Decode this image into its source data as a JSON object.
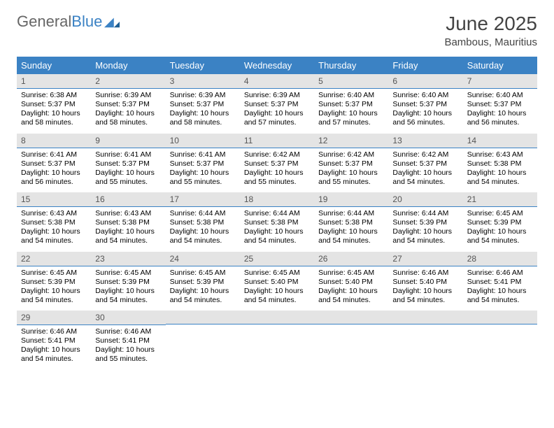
{
  "logo": {
    "word1": "General",
    "word2": "Blue"
  },
  "title": "June 2025",
  "location": "Bambous, Mauritius",
  "colors": {
    "header_bg": "#3b82c4",
    "header_text": "#ffffff",
    "daynum_bg": "#e4e4e4",
    "daynum_text": "#555555",
    "rule": "#3b82c4",
    "body_text": "#000000",
    "page_bg": "#ffffff",
    "logo_gray": "#666666",
    "logo_blue": "#3b82c4"
  },
  "typography": {
    "title_fontsize": 28,
    "location_fontsize": 15,
    "header_fontsize": 13,
    "daynum_fontsize": 12,
    "body_fontsize": 10.5
  },
  "dayNames": [
    "Sunday",
    "Monday",
    "Tuesday",
    "Wednesday",
    "Thursday",
    "Friday",
    "Saturday"
  ],
  "weeks": [
    [
      {
        "n": "1",
        "sr": "Sunrise: 6:38 AM",
        "ss": "Sunset: 5:37 PM",
        "d1": "Daylight: 10 hours",
        "d2": "and 58 minutes."
      },
      {
        "n": "2",
        "sr": "Sunrise: 6:39 AM",
        "ss": "Sunset: 5:37 PM",
        "d1": "Daylight: 10 hours",
        "d2": "and 58 minutes."
      },
      {
        "n": "3",
        "sr": "Sunrise: 6:39 AM",
        "ss": "Sunset: 5:37 PM",
        "d1": "Daylight: 10 hours",
        "d2": "and 58 minutes."
      },
      {
        "n": "4",
        "sr": "Sunrise: 6:39 AM",
        "ss": "Sunset: 5:37 PM",
        "d1": "Daylight: 10 hours",
        "d2": "and 57 minutes."
      },
      {
        "n": "5",
        "sr": "Sunrise: 6:40 AM",
        "ss": "Sunset: 5:37 PM",
        "d1": "Daylight: 10 hours",
        "d2": "and 57 minutes."
      },
      {
        "n": "6",
        "sr": "Sunrise: 6:40 AM",
        "ss": "Sunset: 5:37 PM",
        "d1": "Daylight: 10 hours",
        "d2": "and 56 minutes."
      },
      {
        "n": "7",
        "sr": "Sunrise: 6:40 AM",
        "ss": "Sunset: 5:37 PM",
        "d1": "Daylight: 10 hours",
        "d2": "and 56 minutes."
      }
    ],
    [
      {
        "n": "8",
        "sr": "Sunrise: 6:41 AM",
        "ss": "Sunset: 5:37 PM",
        "d1": "Daylight: 10 hours",
        "d2": "and 56 minutes."
      },
      {
        "n": "9",
        "sr": "Sunrise: 6:41 AM",
        "ss": "Sunset: 5:37 PM",
        "d1": "Daylight: 10 hours",
        "d2": "and 55 minutes."
      },
      {
        "n": "10",
        "sr": "Sunrise: 6:41 AM",
        "ss": "Sunset: 5:37 PM",
        "d1": "Daylight: 10 hours",
        "d2": "and 55 minutes."
      },
      {
        "n": "11",
        "sr": "Sunrise: 6:42 AM",
        "ss": "Sunset: 5:37 PM",
        "d1": "Daylight: 10 hours",
        "d2": "and 55 minutes."
      },
      {
        "n": "12",
        "sr": "Sunrise: 6:42 AM",
        "ss": "Sunset: 5:37 PM",
        "d1": "Daylight: 10 hours",
        "d2": "and 55 minutes."
      },
      {
        "n": "13",
        "sr": "Sunrise: 6:42 AM",
        "ss": "Sunset: 5:37 PM",
        "d1": "Daylight: 10 hours",
        "d2": "and 54 minutes."
      },
      {
        "n": "14",
        "sr": "Sunrise: 6:43 AM",
        "ss": "Sunset: 5:38 PM",
        "d1": "Daylight: 10 hours",
        "d2": "and 54 minutes."
      }
    ],
    [
      {
        "n": "15",
        "sr": "Sunrise: 6:43 AM",
        "ss": "Sunset: 5:38 PM",
        "d1": "Daylight: 10 hours",
        "d2": "and 54 minutes."
      },
      {
        "n": "16",
        "sr": "Sunrise: 6:43 AM",
        "ss": "Sunset: 5:38 PM",
        "d1": "Daylight: 10 hours",
        "d2": "and 54 minutes."
      },
      {
        "n": "17",
        "sr": "Sunrise: 6:44 AM",
        "ss": "Sunset: 5:38 PM",
        "d1": "Daylight: 10 hours",
        "d2": "and 54 minutes."
      },
      {
        "n": "18",
        "sr": "Sunrise: 6:44 AM",
        "ss": "Sunset: 5:38 PM",
        "d1": "Daylight: 10 hours",
        "d2": "and 54 minutes."
      },
      {
        "n": "19",
        "sr": "Sunrise: 6:44 AM",
        "ss": "Sunset: 5:38 PM",
        "d1": "Daylight: 10 hours",
        "d2": "and 54 minutes."
      },
      {
        "n": "20",
        "sr": "Sunrise: 6:44 AM",
        "ss": "Sunset: 5:39 PM",
        "d1": "Daylight: 10 hours",
        "d2": "and 54 minutes."
      },
      {
        "n": "21",
        "sr": "Sunrise: 6:45 AM",
        "ss": "Sunset: 5:39 PM",
        "d1": "Daylight: 10 hours",
        "d2": "and 54 minutes."
      }
    ],
    [
      {
        "n": "22",
        "sr": "Sunrise: 6:45 AM",
        "ss": "Sunset: 5:39 PM",
        "d1": "Daylight: 10 hours",
        "d2": "and 54 minutes."
      },
      {
        "n": "23",
        "sr": "Sunrise: 6:45 AM",
        "ss": "Sunset: 5:39 PM",
        "d1": "Daylight: 10 hours",
        "d2": "and 54 minutes."
      },
      {
        "n": "24",
        "sr": "Sunrise: 6:45 AM",
        "ss": "Sunset: 5:39 PM",
        "d1": "Daylight: 10 hours",
        "d2": "and 54 minutes."
      },
      {
        "n": "25",
        "sr": "Sunrise: 6:45 AM",
        "ss": "Sunset: 5:40 PM",
        "d1": "Daylight: 10 hours",
        "d2": "and 54 minutes."
      },
      {
        "n": "26",
        "sr": "Sunrise: 6:45 AM",
        "ss": "Sunset: 5:40 PM",
        "d1": "Daylight: 10 hours",
        "d2": "and 54 minutes."
      },
      {
        "n": "27",
        "sr": "Sunrise: 6:46 AM",
        "ss": "Sunset: 5:40 PM",
        "d1": "Daylight: 10 hours",
        "d2": "and 54 minutes."
      },
      {
        "n": "28",
        "sr": "Sunrise: 6:46 AM",
        "ss": "Sunset: 5:41 PM",
        "d1": "Daylight: 10 hours",
        "d2": "and 54 minutes."
      }
    ],
    [
      {
        "n": "29",
        "sr": "Sunrise: 6:46 AM",
        "ss": "Sunset: 5:41 PM",
        "d1": "Daylight: 10 hours",
        "d2": "and 54 minutes."
      },
      {
        "n": "30",
        "sr": "Sunrise: 6:46 AM",
        "ss": "Sunset: 5:41 PM",
        "d1": "Daylight: 10 hours",
        "d2": "and 55 minutes."
      },
      null,
      null,
      null,
      null,
      null
    ]
  ]
}
